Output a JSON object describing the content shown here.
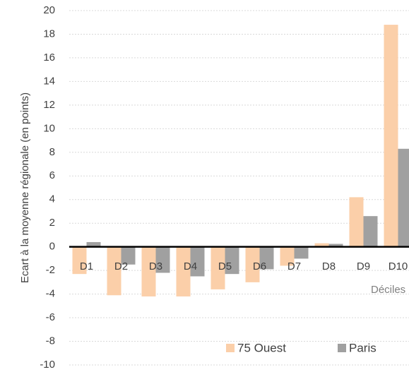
{
  "chart_data": {
    "type": "bar",
    "y_axis_label": "Ecart à la moyenne régionale (en points)",
    "x_axis_label": "Déciles",
    "categories": [
      "D1",
      "D2",
      "D3",
      "D4",
      "D5",
      "D6",
      "D7",
      "D8",
      "D9",
      "D10"
    ],
    "series": [
      {
        "name": "75 Ouest",
        "color": "#fbcfa9",
        "values": [
          -2.3,
          -4.1,
          -4.2,
          -4.2,
          -3.6,
          -3.0,
          -1.6,
          0.3,
          4.2,
          18.8
        ]
      },
      {
        "name": "Paris",
        "color": "#a0a0a0",
        "values": [
          0.4,
          -1.5,
          -2.2,
          -2.5,
          -2.3,
          -1.9,
          -1.0,
          0.25,
          2.6,
          8.3
        ]
      }
    ],
    "ylim": [
      -10,
      20
    ],
    "yticks": [
      -10,
      -8,
      -6,
      -4,
      -2,
      0,
      2,
      4,
      6,
      8,
      10,
      12,
      14,
      16,
      18,
      20
    ],
    "grid": true,
    "legend": "bottom"
  }
}
